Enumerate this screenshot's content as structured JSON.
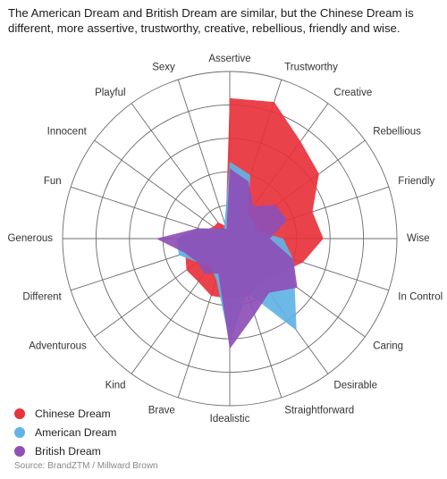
{
  "header": {
    "title": "The American Dream and British Dream are similar, but the Chinese Dream is different, more assertive, trustworthy, creative, rebellious, friendly and wise."
  },
  "footer": {
    "source": "Source: BrandZTM / Millward Brown"
  },
  "chart_data": {
    "type": "radar",
    "axes": [
      "Assertive",
      "Trustworthy",
      "Creative",
      "Rebellious",
      "Friendly",
      "Wise",
      "In Control",
      "Caring",
      "Desirable",
      "Straightforward",
      "Idealistic",
      "Brave",
      "Kind",
      "Adventurous",
      "Different",
      "Generous",
      "Fun",
      "Innocent",
      "Playful",
      "Sexy"
    ],
    "rmax": 5,
    "rings": 5,
    "grid": true,
    "legend_position": "bottom-left",
    "series": [
      {
        "name": "Chinese Dream",
        "color": "#e8323c",
        "values": [
          4.2,
          4.3,
          3.6,
          3.3,
          2.6,
          2.8,
          2.3,
          1.8,
          1.6,
          1.8,
          1.8,
          1.8,
          1.6,
          1.6,
          1.4,
          1.6,
          0.8,
          0.6,
          0.6,
          0.4
        ]
      },
      {
        "name": "American Dream",
        "color": "#5fb3e6",
        "values": [
          2.3,
          2.0,
          0.9,
          0.9,
          0.8,
          1.6,
          2.0,
          2.4,
          3.4,
          1.7,
          3.1,
          1.3,
          1.0,
          1.2,
          1.6,
          1.6,
          1.0,
          0.5,
          0.3,
          0.5
        ]
      },
      {
        "name": "British Dream",
        "color": "#8e4fb6",
        "values": [
          2.1,
          1.8,
          1.2,
          1.7,
          1.8,
          1.2,
          2.0,
          2.5,
          2.0,
          2.4,
          3.3,
          1.1,
          1.3,
          1.2,
          1.4,
          2.2,
          1.0,
          0.5,
          0.4,
          0.3
        ]
      }
    ]
  }
}
